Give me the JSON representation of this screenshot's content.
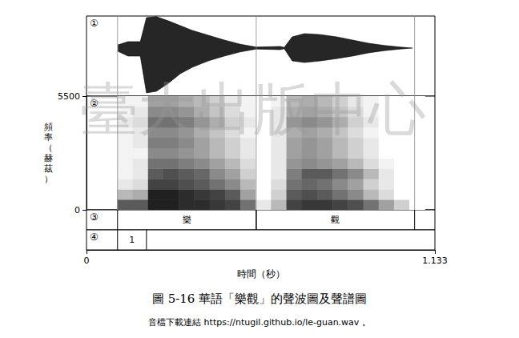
{
  "chart_data": {
    "type": "waveform_spectrogram",
    "title": "圖 5-16 華語「樂觀」的聲波圖及聲譜圖",
    "subtitle": "音檔下載連結 https://ntugil.github.io/le-guan.wav 。",
    "watermark": "臺大出版中心",
    "xlabel": "時間（秒）",
    "xlim": [
      0,
      1.133
    ],
    "xticks": [
      0,
      1.133
    ],
    "panels": [
      "①",
      "②",
      "③",
      "④"
    ],
    "waveform": {
      "color": "#000000",
      "tick_labels": false,
      "ylim": [
        -1.5,
        1
      ],
      "x": [
        0.102,
        0.135,
        0.175,
        0.195,
        0.227,
        0.266,
        0.305,
        0.344,
        0.396,
        0.448,
        0.5,
        0.552,
        0.63,
        0.643,
        0.669,
        0.709,
        0.761,
        0.813,
        0.865,
        0.917,
        0.969,
        1.021,
        1.06
      ],
      "upper": [
        0.1,
        0.2,
        0.2,
        0.95,
        0.98,
        0.85,
        0.7,
        0.55,
        0.4,
        0.25,
        0.12,
        0.03,
        0.05,
        0.02,
        0.35,
        0.45,
        0.42,
        0.35,
        0.25,
        0.15,
        0.08,
        0.03,
        0
      ],
      "lower": [
        -0.1,
        -0.25,
        -0.25,
        -1.4,
        -1.35,
        -1.1,
        -0.8,
        -0.6,
        -0.4,
        -0.25,
        -0.12,
        -0.03,
        -0.05,
        -0.02,
        -0.4,
        -0.45,
        -0.4,
        -0.33,
        -0.25,
        -0.15,
        -0.08,
        -0.03,
        0
      ]
    },
    "spectrogram": {
      "ylabel": "頻率（赫茲）",
      "ylim": [
        0,
        5500
      ],
      "yticks": [
        0,
        5500
      ],
      "intensity_range": [
        0,
        1
      ],
      "time_bins": [
        0.1,
        0.15,
        0.2,
        0.25,
        0.3,
        0.35,
        0.4,
        0.45,
        0.5,
        0.55,
        0.6,
        0.65,
        0.7,
        0.75,
        0.8,
        0.85,
        0.9,
        0.95,
        1.0,
        1.05,
        1.1
      ],
      "freq_bins": [
        0,
        500,
        1000,
        1500,
        2000,
        2500,
        3000,
        3500,
        4000,
        4500,
        5000,
        5500
      ],
      "intensity": [
        [
          0.7,
          0.7,
          0.95,
          0.95,
          0.9,
          0.9,
          0.85,
          0.8,
          0.6,
          0.1,
          0.3,
          0.8,
          0.85,
          0.85,
          0.8,
          0.75,
          0.6,
          0.4,
          0.2,
          0
        ],
        [
          0.3,
          0.35,
          0.95,
          0.95,
          0.9,
          0.85,
          0.8,
          0.7,
          0.4,
          0,
          0.2,
          0.7,
          0.75,
          0.7,
          0.6,
          0.5,
          0.3,
          0.15,
          0,
          0
        ],
        [
          0.1,
          0.15,
          0.8,
          0.8,
          0.75,
          0.7,
          0.6,
          0.5,
          0.3,
          0,
          0.15,
          0.6,
          0.65,
          0.6,
          0.5,
          0.4,
          0.2,
          0.1,
          0,
          0
        ],
        [
          0.05,
          0.1,
          0.7,
          0.75,
          0.7,
          0.65,
          0.5,
          0.4,
          0.2,
          0,
          0.1,
          0.55,
          0.7,
          0.7,
          0.6,
          0.5,
          0.3,
          0.1,
          0,
          0
        ],
        [
          0.05,
          0.1,
          0.6,
          0.6,
          0.55,
          0.5,
          0.4,
          0.3,
          0.15,
          0,
          0.1,
          0.45,
          0.5,
          0.45,
          0.4,
          0.3,
          0.15,
          0.05,
          0,
          0
        ],
        [
          0.05,
          0.05,
          0.5,
          0.5,
          0.45,
          0.4,
          0.3,
          0.2,
          0.1,
          0,
          0.1,
          0.4,
          0.45,
          0.4,
          0.3,
          0.2,
          0.1,
          0,
          0,
          0
        ],
        [
          0.05,
          0.1,
          0.55,
          0.55,
          0.5,
          0.4,
          0.3,
          0.2,
          0.1,
          0,
          0.1,
          0.4,
          0.45,
          0.4,
          0.3,
          0.2,
          0.1,
          0,
          0,
          0
        ],
        [
          0.05,
          0.1,
          0.5,
          0.5,
          0.45,
          0.35,
          0.25,
          0.15,
          0.05,
          0,
          0.1,
          0.35,
          0.4,
          0.35,
          0.25,
          0.15,
          0.05,
          0,
          0,
          0
        ],
        [
          0.1,
          0.15,
          0.6,
          0.6,
          0.55,
          0.45,
          0.35,
          0.2,
          0.1,
          0,
          0.1,
          0.45,
          0.5,
          0.45,
          0.35,
          0.2,
          0.1,
          0,
          0,
          0
        ],
        [
          0.05,
          0.1,
          0.5,
          0.5,
          0.45,
          0.35,
          0.25,
          0.15,
          0.05,
          0,
          0.1,
          0.35,
          0.4,
          0.35,
          0.25,
          0.15,
          0.05,
          0,
          0,
          0
        ],
        [
          0.05,
          0.05,
          0.4,
          0.4,
          0.35,
          0.3,
          0.2,
          0.1,
          0.05,
          0,
          0.05,
          0.3,
          0.35,
          0.3,
          0.2,
          0.1,
          0.05,
          0,
          0,
          0
        ]
      ]
    },
    "tiers": [
      {
        "intervals": [
          {
            "start": 0.101,
            "end": 0.552,
            "label": "樂"
          },
          {
            "start": 0.552,
            "end": 1.067,
            "label": "觀"
          }
        ]
      },
      {
        "intervals": [
          {
            "start": 0.101,
            "end": 0.195,
            "label": "1"
          }
        ]
      }
    ]
  }
}
